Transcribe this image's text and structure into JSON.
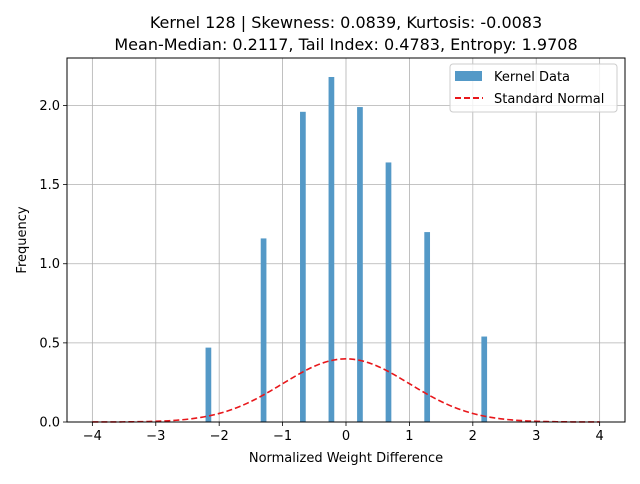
{
  "chart_data": {
    "type": "bar",
    "title_line1": "Kernel 128 | Skewness: 0.0839, Kurtosis: -0.0083",
    "title_line2": "Mean-Median: 0.2117, Tail Index: 0.4783, Entropy: 1.9708",
    "xlabel": "Normalized Weight Difference",
    "ylabel": "Frequency",
    "xlim": [
      -4.4,
      4.4
    ],
    "ylim": [
      0,
      2.3
    ],
    "xticks": [
      -4,
      -3,
      -2,
      -1,
      0,
      1,
      2,
      3,
      4
    ],
    "xtick_labels": [
      "−4",
      "−3",
      "−2",
      "−1",
      "0",
      "1",
      "2",
      "3",
      "4"
    ],
    "yticks": [
      0.0,
      0.5,
      1.0,
      1.5,
      2.0
    ],
    "ytick_labels": [
      "0.0",
      "0.5",
      "1.0",
      "1.5",
      "2.0"
    ],
    "grid": true,
    "legend_position": "top-right",
    "series": [
      {
        "name": "Kernel Data",
        "kind": "histogram",
        "color": "#5499c7",
        "bar_width": 0.09,
        "x": [
          -2.17,
          -1.3,
          -0.68,
          -0.23,
          0.22,
          0.67,
          1.28,
          2.18
        ],
        "values": [
          0.47,
          1.16,
          1.96,
          2.18,
          1.99,
          1.64,
          1.2,
          0.54
        ]
      },
      {
        "name": "Standard Normal",
        "kind": "line",
        "color": "#e8171b",
        "style": "dashed",
        "formula": "standard_normal_pdf",
        "x_range": [
          -4,
          4
        ]
      }
    ]
  }
}
